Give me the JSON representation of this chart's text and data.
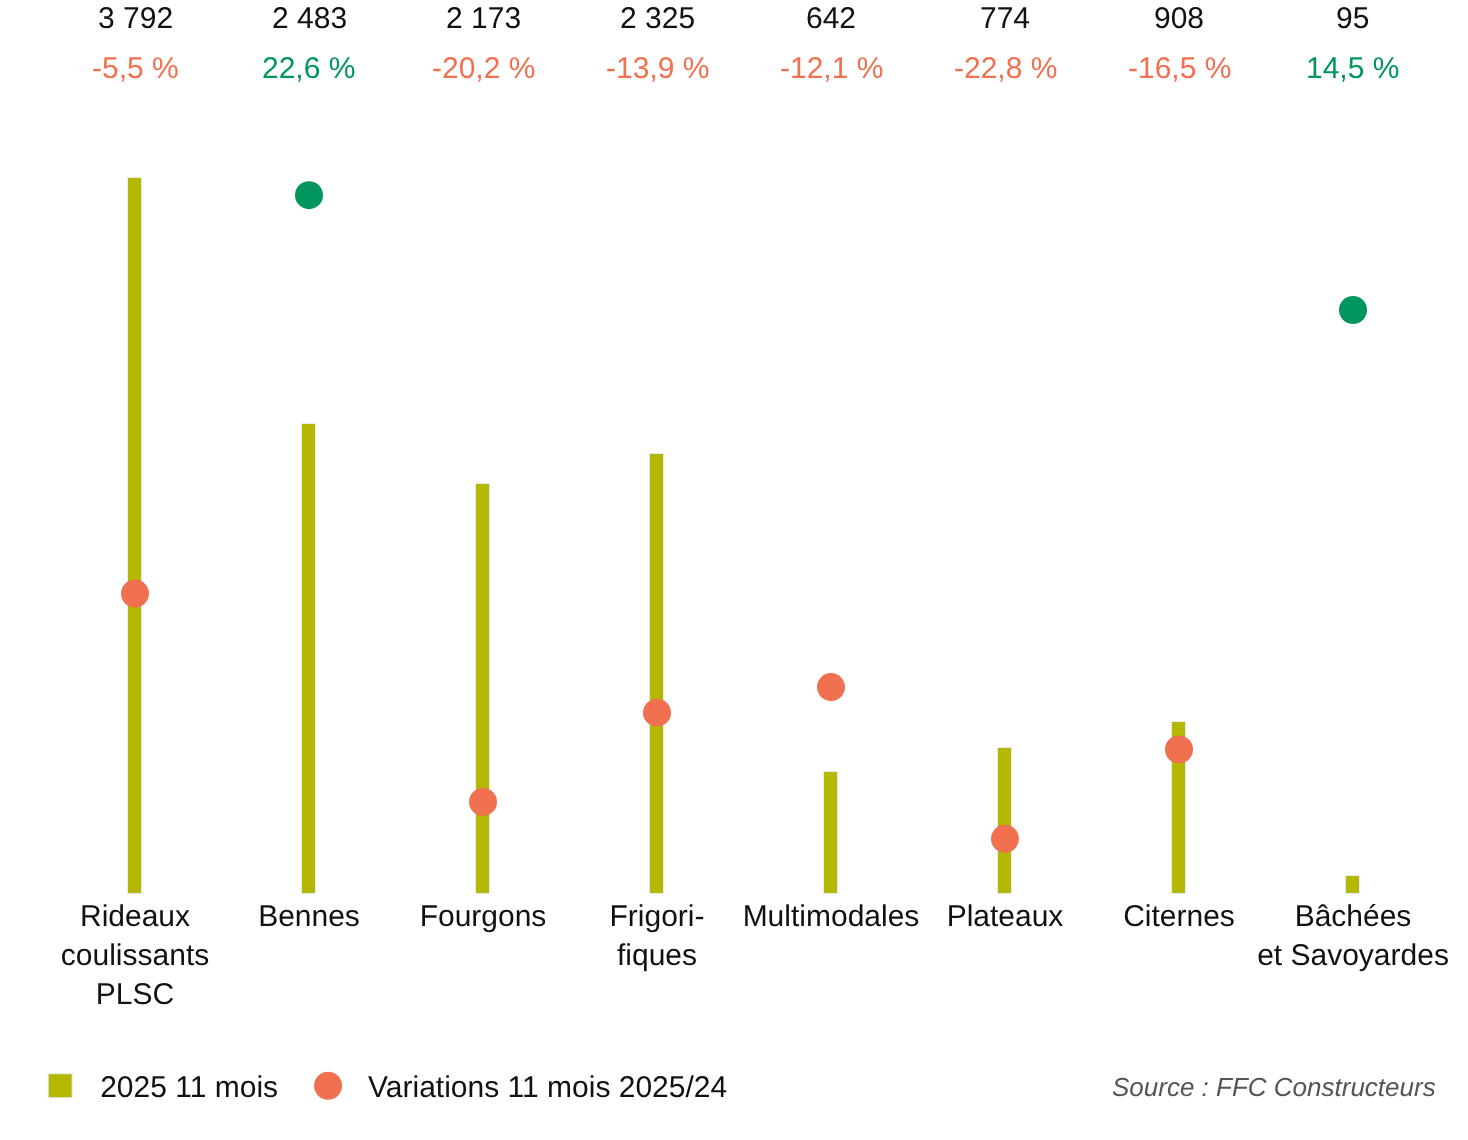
{
  "chart_data": {
    "type": "bar",
    "categories": [
      "Rideaux\ncoulissants\nPLSC",
      "Bennes",
      "Fourgons",
      "Frigori-\nfiques",
      "Multimodales",
      "Plateaux",
      "Citernes",
      "Bâchées\net Savoyardes"
    ],
    "series": [
      {
        "name": "2025 11 mois",
        "color": "#b5b800",
        "values": [
          3792,
          2483,
          2173,
          2325,
          642,
          774,
          908,
          95
        ],
        "value_labels": [
          "3 792",
          "2 483",
          "2 173",
          "2 325",
          "642",
          "774",
          "908",
          "95"
        ]
      },
      {
        "name": "Variations 11 mois 2025/24",
        "type": "scatter",
        "axis": "y2",
        "colors": [
          "#f07050",
          "#00965e",
          "#f07050",
          "#f07050",
          "#f07050",
          "#f07050",
          "#f07050",
          "#00965e"
        ],
        "values": [
          -5.5,
          22.6,
          -20.2,
          -13.9,
          -12.1,
          -22.8,
          -16.5,
          14.5
        ],
        "value_labels": [
          "-5,5 %",
          "22,6 %",
          "-20,2 %",
          "-13,9 %",
          "-12,1 %",
          "-22,8 %",
          "-16,5 %",
          "14,5 %"
        ]
      }
    ],
    "tick_labels": "x",
    "legend": "bottom left",
    "annotations": [
      "Source : FFC Constructeurs"
    ]
  }
}
